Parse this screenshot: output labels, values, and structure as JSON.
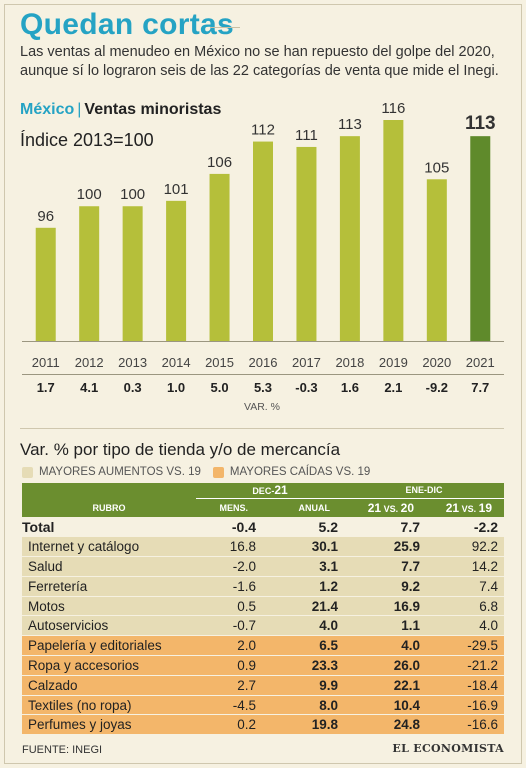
{
  "header": {
    "title": "Quedan cortas",
    "subtitle": "Las ventas al menudeo en México no se han repuesto del golpe del 2020, aunque sí lo lograron seis de las 22 categorías de venta que mide el Inegi."
  },
  "chart_data": {
    "type": "bar",
    "section_country": "México",
    "section_name": "Ventas minoristas",
    "ylabel": "Índice 2013=100",
    "categories": [
      "2011",
      "2012",
      "2013",
      "2014",
      "2015",
      "2016",
      "2017",
      "2018",
      "2019",
      "2020",
      "2021"
    ],
    "values": [
      96,
      100,
      100,
      101,
      106,
      112,
      111,
      113,
      116,
      105,
      113
    ],
    "var_pct": [
      "1.7",
      "4.1",
      "0.3",
      "1.0",
      "5.0",
      "5.3",
      "-0.3",
      "1.6",
      "2.1",
      "-9.2",
      "7.7"
    ],
    "var_label": "VAR. %",
    "highlight_index": 10,
    "colors": {
      "bar": "#b5bf3a",
      "highlight": "#5f8a2b"
    }
  },
  "table": {
    "title": "Var. % por tipo de tienda y/o de mercancía",
    "legend": [
      {
        "label": "MAYORES AUMENTOS VS. 19",
        "color": "#e6dcb6"
      },
      {
        "label": "MAYORES CAÍDAS VS. 19",
        "color": "#f3b66a"
      }
    ],
    "group_dec_prefix": "DEC-",
    "group_dec_year": "21",
    "group_enedic": "ENE-DIC",
    "col_rubro": "RUBRO",
    "col_mens": "MENS.",
    "col_anual": "ANUAL",
    "col_2120_a": "21",
    "col_2120_vs": "VS.",
    "col_2120_b": "20",
    "col_2119_a": "21",
    "col_2119_vs": "VS.",
    "col_2119_b": "19",
    "total": {
      "rubro": "Total",
      "mens": "-0.4",
      "anual": "5.2",
      "v20": "7.7",
      "v19": "-2.2"
    },
    "rows": [
      {
        "rubro": "Internet y catálogo",
        "mens": "16.8",
        "anual": "30.1",
        "v20": "25.9",
        "v19": "92.2",
        "group": "up"
      },
      {
        "rubro": "Salud",
        "mens": "-2.0",
        "anual": "3.1",
        "v20": "7.7",
        "v19": "14.2",
        "group": "up"
      },
      {
        "rubro": "Ferretería",
        "mens": "-1.6",
        "anual": "1.2",
        "v20": "9.2",
        "v19": "7.4",
        "group": "up"
      },
      {
        "rubro": "Motos",
        "mens": "0.5",
        "anual": "21.4",
        "v20": "16.9",
        "v19": "6.8",
        "group": "up"
      },
      {
        "rubro": "Autoservicios",
        "mens": "-0.7",
        "anual": "4.0",
        "v20": "1.1",
        "v19": "4.0",
        "group": "up"
      },
      {
        "rubro": "Papelería y editoriales",
        "mens": "2.0",
        "anual": "6.5",
        "v20": "4.0",
        "v19": "-29.5",
        "group": "down"
      },
      {
        "rubro": "Ropa y accesorios",
        "mens": "0.9",
        "anual": "23.3",
        "v20": "26.0",
        "v19": "-21.2",
        "group": "down"
      },
      {
        "rubro": "Calzado",
        "mens": "2.7",
        "anual": "9.9",
        "v20": "22.1",
        "v19": "-18.4",
        "group": "down"
      },
      {
        "rubro": "Textiles (no ropa)",
        "mens": "-4.5",
        "anual": "8.0",
        "v20": "10.4",
        "v19": "-16.9",
        "group": "down"
      },
      {
        "rubro": "Perfumes y joyas",
        "mens": "0.2",
        "anual": "19.8",
        "v20": "24.8",
        "v19": "-16.6",
        "group": "down"
      }
    ]
  },
  "footer": {
    "source": "FUENTE: INEGI",
    "brand": "EL ECONOMISTA"
  }
}
